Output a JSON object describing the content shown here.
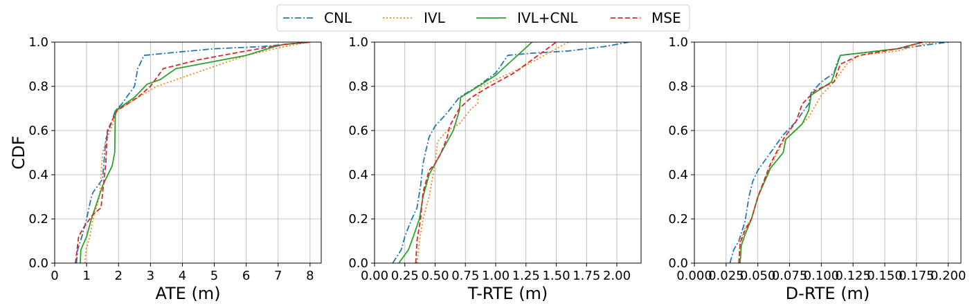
{
  "figure": {
    "ylabel": "CDF"
  },
  "legend": {
    "placement": "top-center",
    "entries": [
      {
        "label": "CNL",
        "color": "#1f77b4",
        "style": "dashdot"
      },
      {
        "label": "IVL",
        "color": "#ff7f0e",
        "style": "dotted"
      },
      {
        "label": "IVL+CNL",
        "color": "#2ca02c",
        "style": "solid"
      },
      {
        "label": "MSE",
        "color": "#d62728",
        "style": "dashed"
      }
    ]
  },
  "chart_data": [
    {
      "type": "line",
      "xlabel": "ATE (m)",
      "ylabel": "CDF",
      "xlim": [
        0,
        8.35
      ],
      "ylim": [
        0,
        1.0
      ],
      "xticks": [
        0,
        1,
        2,
        3,
        4,
        5,
        6,
        7,
        8
      ],
      "xtick_labels": [
        "0",
        "1",
        "2",
        "3",
        "4",
        "5",
        "6",
        "7",
        "8"
      ],
      "yticks": [
        0,
        0.2,
        0.4,
        0.6,
        0.8,
        1.0
      ],
      "ytick_labels": [
        "0.0",
        "0.2",
        "0.4",
        "0.6",
        "0.8",
        "1.0"
      ],
      "grid": true,
      "series": [
        {
          "name": "CNL",
          "x": [
            0.68,
            0.72,
            0.85,
            1.0,
            1.15,
            1.2,
            1.5,
            1.6,
            1.9,
            2.1,
            2.3,
            2.5,
            2.6,
            2.8,
            3.5,
            5.0,
            6.5,
            8.0
          ],
          "y": [
            0.0,
            0.06,
            0.12,
            0.2,
            0.3,
            0.32,
            0.38,
            0.56,
            0.69,
            0.72,
            0.76,
            0.8,
            0.88,
            0.94,
            0.95,
            0.97,
            0.98,
            1.0
          ]
        },
        {
          "name": "IVL",
          "x": [
            0.95,
            0.98,
            1.1,
            1.2,
            1.4,
            1.5,
            1.6,
            1.75,
            1.95,
            2.5,
            3.2,
            4.2,
            6.0,
            7.2,
            8.0
          ],
          "y": [
            0.0,
            0.06,
            0.12,
            0.2,
            0.3,
            0.5,
            0.55,
            0.6,
            0.69,
            0.74,
            0.8,
            0.85,
            0.94,
            0.98,
            1.0
          ]
        },
        {
          "name": "IVL+CNL",
          "x": [
            0.8,
            0.82,
            1.0,
            1.15,
            1.5,
            1.8,
            1.88,
            1.9,
            2.5,
            2.9,
            3.3,
            3.8,
            6.0,
            6.9,
            7.2,
            8.0
          ],
          "y": [
            0.0,
            0.06,
            0.12,
            0.2,
            0.35,
            0.44,
            0.5,
            0.69,
            0.75,
            0.81,
            0.83,
            0.88,
            0.94,
            0.98,
            0.99,
            1.0
          ]
        },
        {
          "name": "MSE",
          "x": [
            0.65,
            0.75,
            0.9,
            1.1,
            1.2,
            1.45,
            1.6,
            1.65,
            1.95,
            2.6,
            3.0,
            3.4,
            4.5,
            6.0,
            7.2,
            8.0
          ],
          "y": [
            0.0,
            0.12,
            0.16,
            0.2,
            0.22,
            0.25,
            0.45,
            0.6,
            0.69,
            0.75,
            0.8,
            0.88,
            0.92,
            0.96,
            0.99,
            1.0
          ]
        }
      ]
    },
    {
      "type": "line",
      "xlabel": "T-RTE (m)",
      "ylabel": "",
      "xlim": [
        0.0,
        2.2
      ],
      "ylim": [
        0,
        1.0
      ],
      "xticks": [
        0.0,
        0.25,
        0.5,
        0.75,
        1.0,
        1.25,
        1.5,
        1.75,
        2.0
      ],
      "xtick_labels": [
        "0.00",
        "0.25",
        "0.50",
        "0.75",
        "1.00",
        "1.25",
        "1.50",
        "1.75",
        "2.00"
      ],
      "yticks": [
        0,
        0.2,
        0.4,
        0.6,
        0.8,
        1.0
      ],
      "ytick_labels": [
        "0.0",
        "0.2",
        "0.4",
        "0.6",
        "0.8",
        "1.0"
      ],
      "grid": true,
      "series": [
        {
          "name": "CNL",
          "x": [
            0.15,
            0.22,
            0.25,
            0.3,
            0.35,
            0.38,
            0.4,
            0.42,
            0.45,
            0.5,
            0.6,
            0.7,
            0.85,
            1.0,
            1.1,
            1.3,
            1.6,
            1.9,
            2.1
          ],
          "y": [
            0.0,
            0.06,
            0.12,
            0.19,
            0.25,
            0.35,
            0.45,
            0.5,
            0.57,
            0.62,
            0.68,
            0.75,
            0.8,
            0.86,
            0.94,
            0.95,
            0.96,
            0.98,
            1.0
          ]
        },
        {
          "name": "IVL",
          "x": [
            0.35,
            0.37,
            0.4,
            0.45,
            0.5,
            0.52,
            0.6,
            0.7,
            0.8,
            0.85,
            0.86,
            0.88,
            1.0,
            1.2,
            1.4,
            1.6
          ],
          "y": [
            0.0,
            0.1,
            0.2,
            0.3,
            0.45,
            0.55,
            0.6,
            0.63,
            0.7,
            0.72,
            0.78,
            0.8,
            0.83,
            0.88,
            0.94,
            1.0
          ]
        },
        {
          "name": "IVL+CNL",
          "x": [
            0.2,
            0.28,
            0.32,
            0.37,
            0.4,
            0.45,
            0.55,
            0.65,
            0.7,
            0.71,
            0.8,
            1.0,
            1.1,
            1.2,
            1.3
          ],
          "y": [
            0.0,
            0.06,
            0.12,
            0.2,
            0.3,
            0.4,
            0.5,
            0.6,
            0.69,
            0.75,
            0.78,
            0.85,
            0.9,
            0.95,
            1.0
          ]
        },
        {
          "name": "MSE",
          "x": [
            0.34,
            0.35,
            0.38,
            0.4,
            0.45,
            0.5,
            0.55,
            0.6,
            0.62,
            0.7,
            0.8,
            0.95,
            1.15,
            1.3,
            1.45,
            1.5
          ],
          "y": [
            0.0,
            0.1,
            0.2,
            0.32,
            0.42,
            0.45,
            0.5,
            0.57,
            0.62,
            0.7,
            0.75,
            0.8,
            0.86,
            0.92,
            0.98,
            1.0
          ]
        }
      ]
    },
    {
      "type": "line",
      "xlabel": "D-RTE (m)",
      "ylabel": "",
      "xlim": [
        0.0,
        0.21
      ],
      "ylim": [
        0,
        1.0
      ],
      "xticks": [
        0.0,
        0.025,
        0.05,
        0.075,
        0.1,
        0.125,
        0.15,
        0.175,
        0.2
      ],
      "xtick_labels": [
        "0.000",
        "0.025",
        "0.050",
        "0.075",
        "0.100",
        "0.125",
        "0.150",
        "0.175",
        "0.200"
      ],
      "yticks": [
        0,
        0.2,
        0.4,
        0.6,
        0.8,
        1.0
      ],
      "ytick_labels": [
        "0.0",
        "0.2",
        "0.4",
        "0.6",
        "0.8",
        "1.0"
      ],
      "grid": true,
      "series": [
        {
          "name": "CNL",
          "x": [
            0.028,
            0.031,
            0.035,
            0.04,
            0.043,
            0.046,
            0.05,
            0.06,
            0.07,
            0.08,
            0.09,
            0.092,
            0.1,
            0.11,
            0.112,
            0.115,
            0.13,
            0.16,
            0.2
          ],
          "y": [
            0.0,
            0.06,
            0.1,
            0.19,
            0.3,
            0.37,
            0.42,
            0.5,
            0.58,
            0.64,
            0.72,
            0.77,
            0.82,
            0.86,
            0.9,
            0.94,
            0.95,
            0.97,
            1.0
          ]
        },
        {
          "name": "IVL",
          "x": [
            0.035,
            0.036,
            0.04,
            0.045,
            0.05,
            0.06,
            0.07,
            0.08,
            0.09,
            0.1,
            0.11,
            0.12,
            0.13,
            0.16,
            0.18,
            0.19
          ],
          "y": [
            0.0,
            0.1,
            0.16,
            0.2,
            0.3,
            0.44,
            0.55,
            0.6,
            0.66,
            0.76,
            0.82,
            0.9,
            0.94,
            0.96,
            0.99,
            1.0
          ]
        },
        {
          "name": "IVL+CNL",
          "x": [
            0.036,
            0.037,
            0.04,
            0.045,
            0.05,
            0.06,
            0.07,
            0.072,
            0.085,
            0.09,
            0.092,
            0.1,
            0.108,
            0.115,
            0.13,
            0.16,
            0.18
          ],
          "y": [
            0.0,
            0.08,
            0.13,
            0.2,
            0.3,
            0.43,
            0.5,
            0.56,
            0.63,
            0.69,
            0.76,
            0.79,
            0.82,
            0.94,
            0.95,
            0.97,
            1.0
          ]
        },
        {
          "name": "MSE",
          "x": [
            0.035,
            0.036,
            0.04,
            0.045,
            0.05,
            0.06,
            0.07,
            0.08,
            0.085,
            0.095,
            0.11,
            0.115,
            0.13,
            0.16,
            0.18
          ],
          "y": [
            0.0,
            0.09,
            0.15,
            0.2,
            0.3,
            0.45,
            0.56,
            0.64,
            0.72,
            0.78,
            0.82,
            0.9,
            0.94,
            0.97,
            1.0
          ]
        }
      ]
    }
  ]
}
